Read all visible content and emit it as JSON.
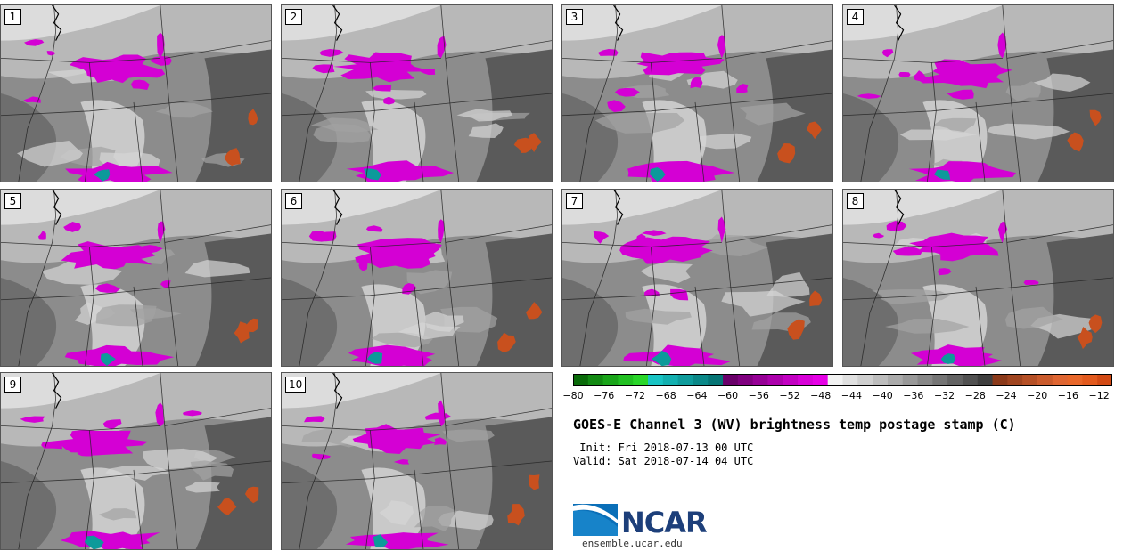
{
  "panels": [
    {
      "label": "1"
    },
    {
      "label": "2"
    },
    {
      "label": "3"
    },
    {
      "label": "4"
    },
    {
      "label": "5"
    },
    {
      "label": "6"
    },
    {
      "label": "7"
    },
    {
      "label": "8"
    },
    {
      "label": "9"
    },
    {
      "label": "10"
    }
  ],
  "colorbar": {
    "ticks": [
      "−80",
      "−76",
      "−72",
      "−68",
      "−64",
      "−60",
      "−56",
      "−52",
      "−48",
      "−44",
      "−40",
      "−36",
      "−32",
      "−28",
      "−24",
      "−20",
      "−16",
      "−12"
    ],
    "colors": [
      "#0a6b0a",
      "#138a13",
      "#1aa51a",
      "#22c022",
      "#2ad62a",
      "#19c4c4",
      "#13b0b0",
      "#0f9c9c",
      "#0a8888",
      "#067575",
      "#6a006a",
      "#800080",
      "#960096",
      "#ac00ac",
      "#c200c2",
      "#d800d8",
      "#e600e6",
      "#f2f2f2",
      "#e0e0e0",
      "#cfcfcf",
      "#bdbdbd",
      "#ababab",
      "#999999",
      "#878787",
      "#757575",
      "#636363",
      "#515151",
      "#3f3f3f",
      "#8b3a1a",
      "#a04520",
      "#b55026",
      "#ca5b2c",
      "#df6632",
      "#e8672a",
      "#e25a1e",
      "#d24a14"
    ],
    "accent_magenta": "#d400d4",
    "accent_teal": "#0d9a9a",
    "accent_orange": "#c8501e"
  },
  "title": "GOES-E Channel 3 (WV) brightness temp postage stamp (C)",
  "init": " Init: Fri 2018-07-13 00 UTC",
  "valid": "Valid: Sat 2018-07-14 04 UTC",
  "logo": {
    "text": "NCAR",
    "url": "ensemble.ucar.edu"
  }
}
